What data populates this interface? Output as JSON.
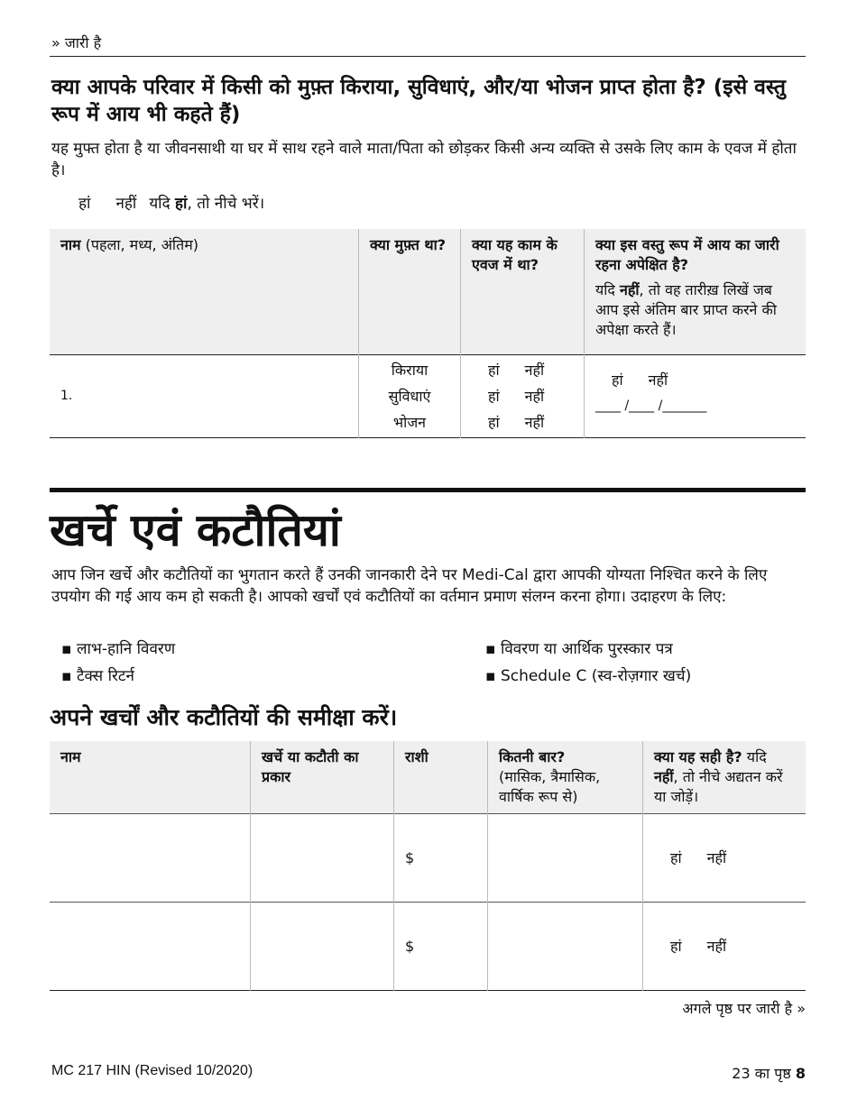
{
  "continued_top": "» जारी है",
  "section1": {
    "heading": "क्या आपके परिवार में किसी को मुफ़्त किराया, सुविधाएं, और/या भोजन प्राप्त होता है? (इसे वस्तु रूप में आय भी कहते हैं)",
    "description": "यह मुफ्त होता है या जीवनसाथी या घर में साथ रहने वाले माता/पिता को छोड़कर किसी अन्य व्यक्ति से उसके लिए काम के एवज में होता है।",
    "yes": "हां",
    "no": "नहीं",
    "if_prefix": "यदि",
    "if_yes_bold": "हां",
    "if_suffix": ", तो नीचे भरें।",
    "table": {
      "col_name_bold": "नाम",
      "col_name_rest": " (पहला, मध्य, अंतिम)",
      "col_free": "क्या मुफ़्त था?",
      "col_work": "क्या यह काम के एवज में था?",
      "col_continue": "क्या इस वस्तु रूप में आय का जारी रहना अपेक्षित है?",
      "col_continue_note_prefix": "यदि ",
      "col_continue_note_bold": "नहीं",
      "col_continue_note_rest": ", तो वह तारीख़ लिखें जब आप इसे अंतिम बार प्राप्त करने की अपेक्षा करते हैं।",
      "row_number": "1.",
      "items": [
        "किराया",
        "सुविधाएं",
        "भोजन"
      ],
      "yes": "हां",
      "no": "नहीं",
      "date_blank": "____ /____ /_______"
    }
  },
  "section2": {
    "title": "खर्चे एवं कटौतियां",
    "description": "आप जिन खर्चे और कटौतियों का भुगतान करते हैं उनकी जानकारी देने पर Medi-Cal द्वारा आपकी योग्यता निश्चित करने के लिए उपयोग की गई आय कम हो सकती है। आपको खर्चों एवं कटौतियों का वर्तमान प्रमाण संलग्न करना होगा। उदाहरण के लिए:",
    "bullets": [
      "लाभ-हानि विवरण",
      "टैक्स रिटर्न",
      "विवरण या आर्थिक पुरस्कार पत्र",
      "Schedule C (स्व-रोज़गार खर्च)"
    ],
    "subheading": "अपने खर्चों और कटौतियों की समीक्षा करें।",
    "table": {
      "col_name": "नाम",
      "col_type": "खर्चे या कटौती का प्रकार",
      "col_amount": "राशी",
      "col_freq_bold": "कितनी बार?",
      "col_freq_rest": "(मासिक, त्रैमासिक, वार्षिक रूप से)",
      "col_correct_bold": "क्या यह सही है?",
      "col_correct_mid": " यदि ",
      "col_correct_no": "नहीं",
      "col_correct_rest": ", तो नीचे अद्यतन करें या जोड़ें।",
      "currency": "$",
      "yes": "हां",
      "no": "नहीं"
    }
  },
  "continued_bottom": "अगले पृष्ठ पर जारी है »",
  "footer": {
    "form_id": "MC 217 HIN (Revised 10/2020)",
    "page_prefix": "23 का पृष्ठ ",
    "page_number": "8"
  }
}
